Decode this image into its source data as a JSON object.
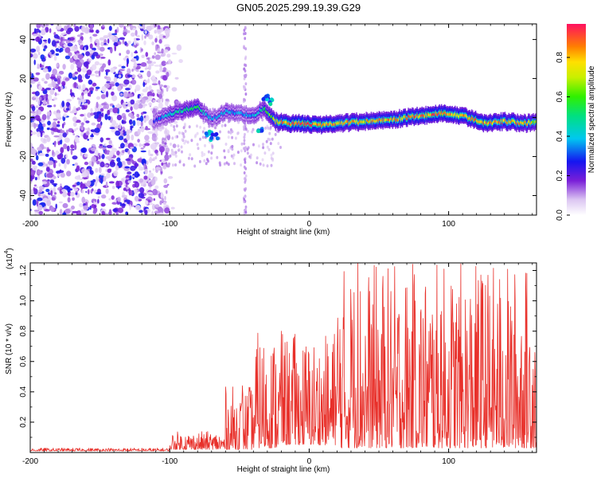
{
  "title": "GN05.2025.299.19.39.G29",
  "chart_data": [
    {
      "type": "heatmap",
      "xlabel": "Height of straight line (km)",
      "ylabel": "Frequency (Hz)",
      "xlim": [
        -200,
        163
      ],
      "ylim": [
        -50,
        48
      ],
      "xticks": [
        -200,
        -100,
        0,
        100
      ],
      "yticks": [
        -40,
        -20,
        0,
        20,
        40
      ],
      "colorbar": {
        "label": "Normalized spectral amplitude",
        "range": [
          0,
          0.97
        ],
        "ticks": [
          0.0,
          0.2,
          0.4,
          0.6,
          0.8
        ]
      },
      "ridge": {
        "description_free": true,
        "x": [
          -112,
          -100,
          -90,
          -80,
          -75,
          -70,
          -60,
          -50,
          -40,
          -33,
          -25,
          -15,
          -5,
          5,
          20,
          40,
          60,
          80,
          95,
          110,
          125,
          140,
          155,
          163
        ],
        "freq": [
          -2,
          2,
          4,
          5,
          2,
          -1,
          3,
          2,
          1,
          5,
          -2,
          -3,
          -3,
          -4,
          -3,
          -2,
          -1,
          1,
          2,
          1,
          -3,
          -2,
          -3,
          -2
        ],
        "peak_amplitude": [
          0.3,
          0.45,
          0.5,
          0.55,
          0.4,
          0.35,
          0.4,
          0.35,
          0.4,
          0.5,
          0.75,
          0.9,
          0.95,
          0.92,
          0.85,
          0.8,
          0.85,
          0.9,
          0.92,
          0.85,
          0.88,
          0.85,
          0.8,
          0.7
        ]
      },
      "noise_region": {
        "x": [
          -200,
          -100
        ],
        "freq": [
          -50,
          48
        ],
        "amplitude": [
          0.05,
          0.3
        ]
      }
    },
    {
      "type": "line",
      "xlabel": "Height of straight line (km)",
      "ylabel": "SNR (10 * v/v)",
      "scale_label": "(x10",
      "scale_exponent": "4",
      "xlim": [
        -200,
        163
      ],
      "ylim": [
        0,
        1.25
      ],
      "xticks": [
        -200,
        -100,
        0,
        100
      ],
      "yticks": [
        0.2,
        0.4,
        0.6,
        0.8,
        1.0,
        1.2
      ],
      "series": [
        {
          "name": "SNR",
          "color": "#e8302a",
          "segments": [
            {
              "x": [
                -200,
                -100
              ],
              "floor": 0.01,
              "max": 0.03
            },
            {
              "x": [
                -100,
                -60
              ],
              "floor": 0.02,
              "max": 0.14
            },
            {
              "x": [
                -60,
                -40
              ],
              "floor": 0.02,
              "max": 0.44
            },
            {
              "x": [
                -40,
                -20
              ],
              "floor": 0.03,
              "max": 0.8
            },
            {
              "x": [
                -20,
                20
              ],
              "floor": 0.05,
              "max": 0.78
            },
            {
              "x": [
                20,
                163
              ],
              "floor": 0.03,
              "max": 1.25
            }
          ],
          "peaks": [
            {
              "x": -48,
              "y": 0.44
            },
            {
              "x": -43,
              "y": 0.43
            },
            {
              "x": -20,
              "y": 0.8
            },
            {
              "x": -10,
              "y": 0.78
            },
            {
              "x": 18,
              "y": 0.78
            },
            {
              "x": 30,
              "y": 0.9
            },
            {
              "x": 35,
              "y": 1.25
            },
            {
              "x": 52,
              "y": 0.78
            },
            {
              "x": 76,
              "y": 1.0
            },
            {
              "x": 95,
              "y": 0.93
            },
            {
              "x": 103,
              "y": 0.85
            },
            {
              "x": 123,
              "y": 1.17
            },
            {
              "x": 152,
              "y": 0.67
            }
          ]
        }
      ]
    }
  ]
}
